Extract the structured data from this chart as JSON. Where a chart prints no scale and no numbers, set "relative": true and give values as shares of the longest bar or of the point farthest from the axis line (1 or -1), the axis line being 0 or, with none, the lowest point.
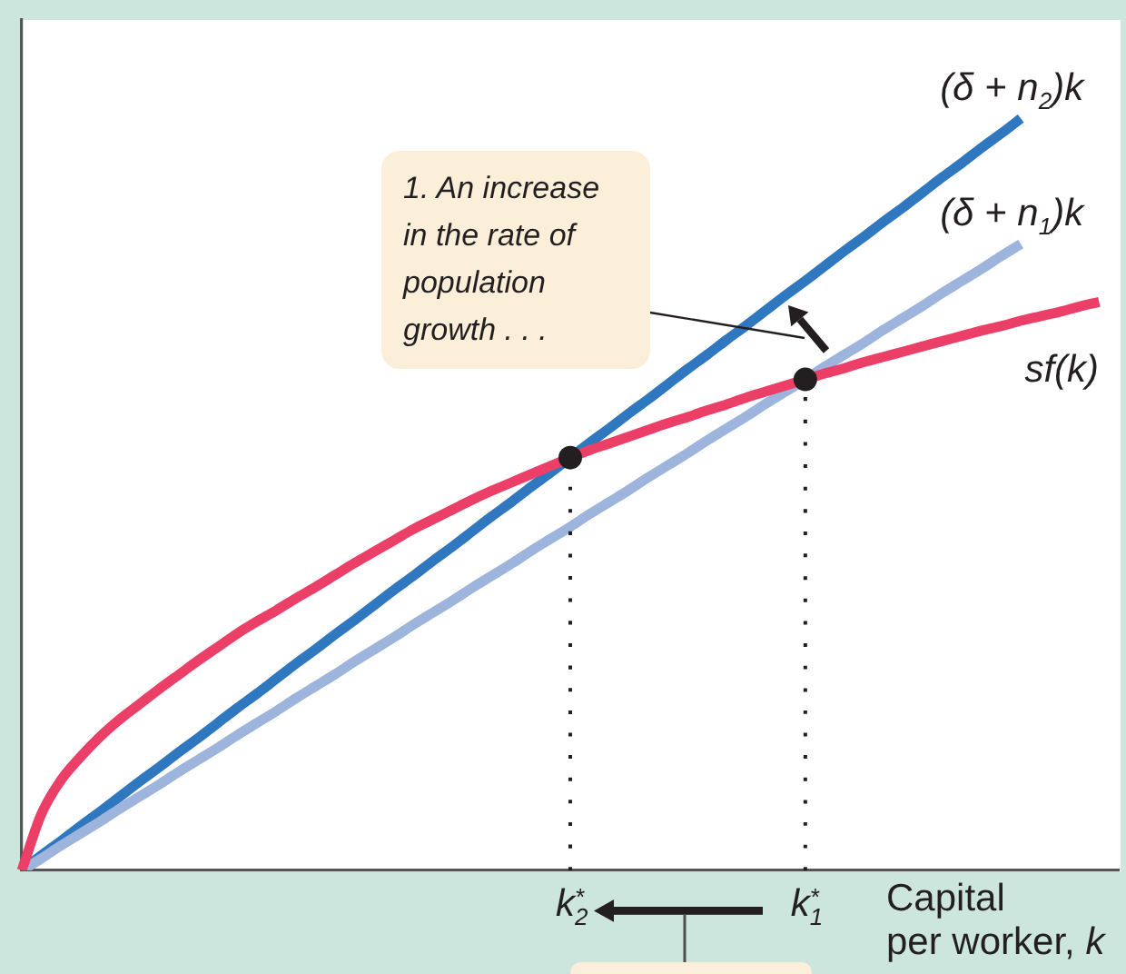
{
  "chart_data": {
    "type": "line",
    "relative": true,
    "categories": [
      null,
      null,
      null,
      null,
      null,
      null,
      null,
      null,
      null,
      null,
      null,
      null,
      null,
      null,
      null,
      null,
      null,
      null,
      null,
      null,
      null,
      null,
      null,
      null,
      null,
      null,
      null,
      null,
      "k$_{2}$$^{*}$",
      null,
      null,
      null,
      null,
      null,
      null,
      null,
      null,
      null,
      null,
      null,
      "k$_{1}$$^{*}$",
      null,
      null,
      null,
      null,
      null,
      null,
      null,
      null,
      null,
      null,
      null,
      null,
      null,
      null,
      null,
      null
    ],
    "xlabel": "Capital per worker, k",
    "series": [
      {
        "name": "(δ + n$_{2}$)k",
        "color": "#2f77bf",
        "values": [
          0,
          0.02,
          0.039,
          0.059,
          0.078,
          0.098,
          0.118,
          0.137,
          0.157,
          0.176,
          0.196,
          0.216,
          0.235,
          0.255,
          0.275,
          0.294,
          0.314,
          0.333,
          0.353,
          0.373,
          0.392,
          0.412,
          0.431,
          0.451,
          0.471,
          0.49,
          0.51,
          0.529,
          0.549,
          0.569,
          0.588,
          0.608,
          0.627,
          0.647,
          0.667,
          0.686,
          0.706,
          0.725,
          0.745,
          0.765,
          0.784,
          0.804,
          0.824,
          0.843,
          0.863,
          0.882,
          0.902,
          0.922,
          0.941,
          0.961,
          0.98,
          1,
          null,
          null,
          null,
          null,
          null
        ]
      },
      {
        "name": "(δ + n$_{1}$)k",
        "color": "#9db4dd",
        "values": [
          0,
          0.016,
          0.033,
          0.049,
          0.065,
          0.082,
          0.098,
          0.114,
          0.131,
          0.147,
          0.163,
          0.18,
          0.196,
          0.212,
          0.229,
          0.245,
          0.261,
          0.278,
          0.294,
          0.31,
          0.327,
          0.343,
          0.359,
          0.376,
          0.392,
          0.408,
          0.425,
          0.441,
          0.457,
          0.474,
          0.49,
          0.506,
          0.523,
          0.539,
          0.555,
          0.572,
          0.588,
          0.604,
          0.621,
          0.637,
          0.653,
          0.67,
          0.686,
          0.702,
          0.719,
          0.735,
          0.751,
          0.768,
          0.784,
          0.8,
          0.817,
          0.833,
          null,
          null,
          null,
          null,
          null
        ]
      },
      {
        "name": "sf(k)",
        "color": "#ec3f67",
        "values": [
          0,
          0.075,
          0.12,
          0.151,
          0.178,
          0.201,
          0.221,
          0.241,
          0.26,
          0.279,
          0.297,
          0.315,
          0.331,
          0.346,
          0.362,
          0.377,
          0.393,
          0.409,
          0.424,
          0.439,
          0.454,
          0.467,
          0.48,
          0.493,
          0.505,
          0.516,
          0.527,
          0.538,
          0.549,
          0.559,
          0.568,
          0.577,
          0.586,
          0.595,
          0.603,
          0.612,
          0.62,
          0.629,
          0.637,
          0.645,
          0.653,
          0.661,
          0.668,
          0.676,
          0.683,
          0.69,
          0.697,
          0.704,
          0.711,
          0.718,
          0.724,
          0.731,
          0.737,
          0.743,
          0.75,
          0.756,
          null
        ]
      },
      {
        "color": "#231f20",
        "line_style": "dotted",
        "x": [
          "k$_{2}$$^{*}$",
          "k$_{2}$$^{*}$"
        ],
        "values": [
          0,
          0.549
        ]
      },
      {
        "color": "#231f20",
        "line_style": "dotted",
        "x": [
          "k$_{1}$$^{*}$",
          "k$_{1}$$^{*}$"
        ],
        "values": [
          0,
          0.653
        ]
      },
      {
        "type": "scatter",
        "color": "#231f20",
        "x": [
          "k$_{2}$$^{*}$",
          "k$_{1}$$^{*}$"
        ],
        "values": [
          0.549,
          0.653
        ]
      }
    ],
    "annotations": [
      "1. An increase in the rate of population growth . . ."
    ]
  }
}
